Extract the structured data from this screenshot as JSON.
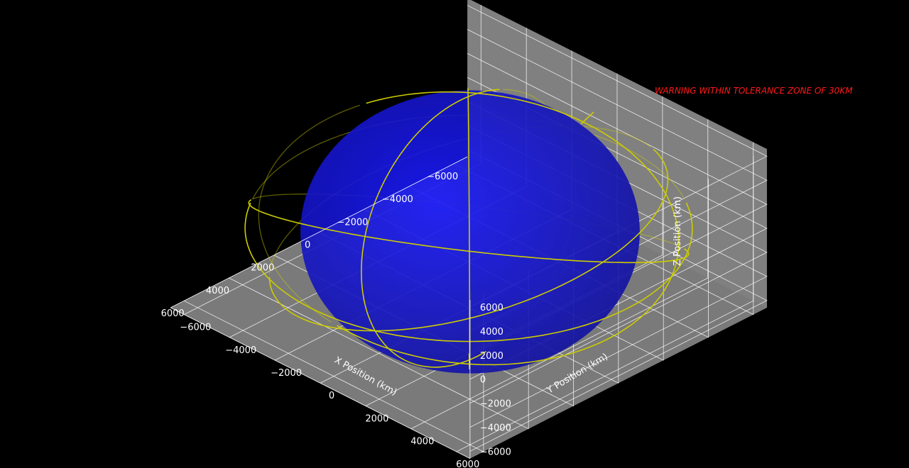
{
  "chart_data": {
    "type": "line",
    "projection": "3d",
    "background": "#000000",
    "pane_color": "#808080",
    "grid": true,
    "xlabel": "X Position (km)",
    "ylabel": "Y Position (km)",
    "zlabel": "Z Position (km)",
    "xlim": [
      -6000,
      6000
    ],
    "ylim": [
      -6000,
      6000
    ],
    "zlim": [
      -6000,
      6000
    ],
    "xticks": [
      -6000,
      -4000,
      -2000,
      0,
      2000,
      4000,
      6000
    ],
    "yticks": [
      -6000,
      -4000,
      -2000,
      0,
      2000,
      4000,
      6000
    ],
    "zticks": [
      -6000,
      -4000,
      -2000,
      0,
      2000,
      4000,
      6000
    ],
    "xtick_labels": [
      "−6000",
      "−4000",
      "−2000",
      "0",
      "2000",
      "4000",
      "6000"
    ],
    "ytick_labels": [
      "−6000",
      "−4000",
      "−2000",
      "0",
      "2000",
      "4000",
      "6000"
    ],
    "ztick_labels": [
      "−6000",
      "−4000",
      "−2000",
      "0",
      "2000",
      "4000",
      "6000"
    ],
    "earth": {
      "radius_km": 6371,
      "color": "#1a1aff"
    },
    "orbit_color": "#cccc00",
    "orbit_radius_km": 7000,
    "orbits": [
      {
        "inclination_deg": 0,
        "raan_deg": 0
      },
      {
        "inclination_deg": 30,
        "raan_deg": 20
      },
      {
        "inclination_deg": 55,
        "raan_deg": 110
      },
      {
        "inclination_deg": 75,
        "raan_deg": 200
      },
      {
        "inclination_deg": 90,
        "raan_deg": 45
      },
      {
        "inclination_deg": 45,
        "raan_deg": 300
      }
    ]
  },
  "annotation": {
    "warning_text": "WARNING WITHIN TOLERANCE ZONE OF 30KM",
    "color": "#ff1a1a"
  }
}
